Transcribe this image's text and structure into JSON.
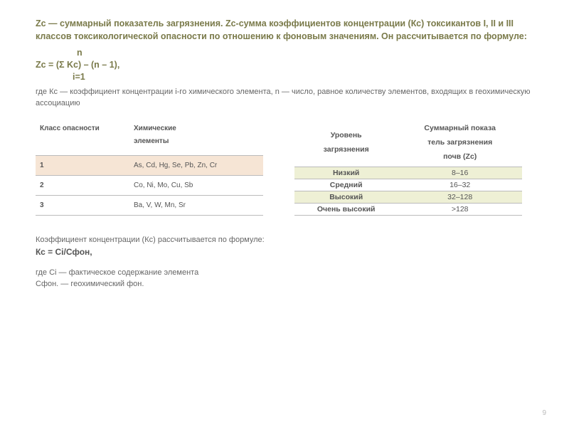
{
  "intro": "Zс — суммарный показатель загрязнения. Zс-сумма коэффициентов концентрации (Кс) токсикантов I, II и III классов токсикологической опасности по отношению к фоновым значениям. Он рассчитывается по формуле:",
  "formula": {
    "top": "n",
    "main": "Zc = (Σ Kc) – (n – 1),",
    "bot": "i=1"
  },
  "explain": "где Кс — коэффициент концентрации i-го химического элемента, n — число, равное количеству элементов, входящих в геохимическую ассоциацию",
  "leftTable": {
    "head": {
      "c1": "Класс опасности",
      "c2_l1": "Химические",
      "c2_l2": "элементы"
    },
    "rows": [
      {
        "cls": "1",
        "elems": "As, Cd, Hg, Se, Pb, Zn, Cr",
        "shade": true
      },
      {
        "cls": "2",
        "elems": "Co, Ni, Mo, Cu, Sb",
        "shade": false
      },
      {
        "cls": "3",
        "elems": "Ba, V, W, Mn, Sr",
        "shade": false
      }
    ]
  },
  "rightTable": {
    "head": {
      "c1_l1": "Уровень",
      "c1_l2": "загрязнения",
      "c2_l1": "Суммарный показа",
      "c2_l2": "тель загрязнения",
      "c2_l3": "почв (Zc)"
    },
    "rows": [
      {
        "lvl": "Низкий",
        "val": "8–16",
        "shade": true
      },
      {
        "lvl": "Средний",
        "val": "16–32",
        "shade": false
      },
      {
        "lvl": "Высокий",
        "val": "32–128",
        "shade": true
      },
      {
        "lvl": "Очень высокий",
        "val": ">128",
        "shade": false
      }
    ]
  },
  "kc": {
    "line1": "Коэффициент концентрации (Кс) рассчитывается по формуле:",
    "formula": "Кс = Сi/Сфон,",
    "line2": "где Ci — фактическое содержание элемента",
    "line3": "Сфон. — геохимический фон."
  },
  "pageNumber": "9",
  "colors": {
    "heading": "#7a7a4a",
    "bodyText": "#666666",
    "tableText": "#555555",
    "shadeLeft": "#f6e5d5",
    "shadeRight": "#eef0d5",
    "border": "#bbbbbb",
    "pageNum": "#bbbbbb",
    "background": "#ffffff"
  }
}
